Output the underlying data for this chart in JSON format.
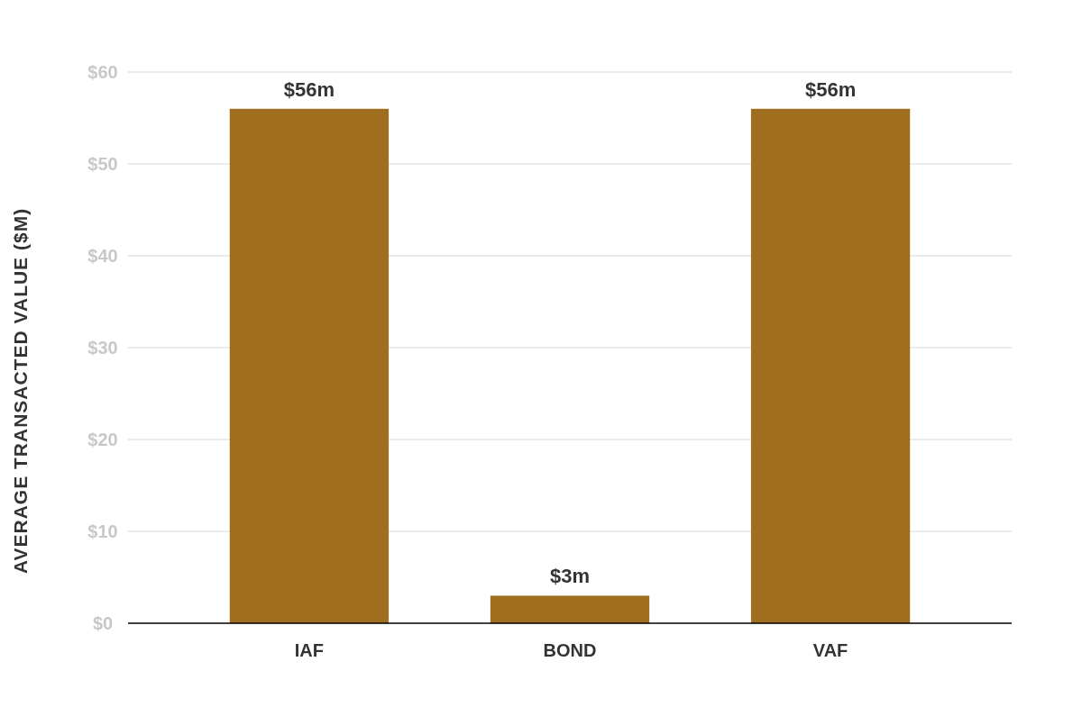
{
  "chart_data": {
    "type": "bar",
    "ylabel": "AVERAGE TRANSACTED VALUE ($M)",
    "categories": [
      "IAF",
      "BOND",
      "VAF"
    ],
    "values": [
      56,
      3,
      56
    ],
    "color": "#a06e1f",
    "value_labels": [
      "$56m",
      "$3m",
      "$56m"
    ],
    "ylim": [
      0,
      60
    ],
    "yticks": [
      {
        "value": 0,
        "label": "$0"
      },
      {
        "value": 10,
        "label": "$10"
      },
      {
        "value": 20,
        "label": "$20"
      },
      {
        "value": 30,
        "label": "$30"
      },
      {
        "value": 40,
        "label": "$40"
      },
      {
        "value": 50,
        "label": "$50"
      },
      {
        "value": 60,
        "label": "$60"
      }
    ],
    "grid": "y"
  }
}
